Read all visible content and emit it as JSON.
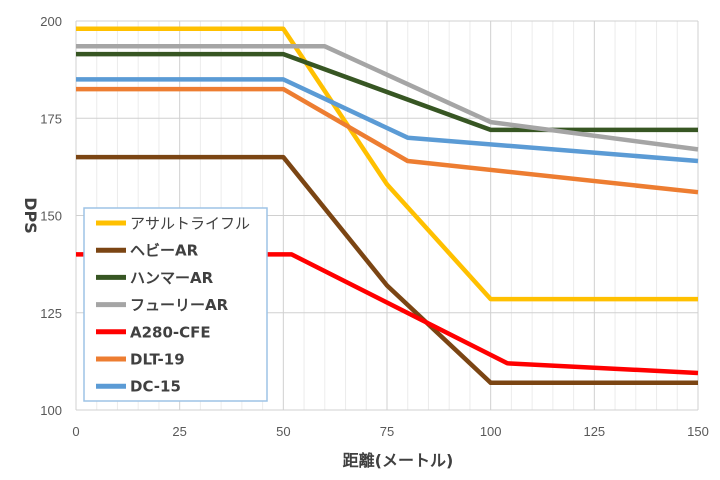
{
  "chart_data": {
    "type": "line",
    "title": "",
    "xlabel": "距離(メートル)",
    "ylabel": "DPS",
    "xlim": [
      0,
      150
    ],
    "ylim": [
      100,
      200
    ],
    "xticks": [
      0,
      25,
      50,
      75,
      100,
      125,
      150
    ],
    "yticks": [
      100,
      125,
      150,
      175,
      200
    ],
    "grid": true,
    "minor_x_grid_step": 5,
    "legend_position": "bottom-left",
    "series": [
      {
        "name": "アサルトライフル",
        "color": "#FFC000",
        "bold": false,
        "points": [
          [
            0,
            198
          ],
          [
            50,
            198
          ],
          [
            75,
            158
          ],
          [
            100,
            128.5
          ],
          [
            150,
            128.5
          ]
        ]
      },
      {
        "name": "ヘビーAR",
        "color": "#7B4513",
        "bold": true,
        "points": [
          [
            0,
            165
          ],
          [
            50,
            165
          ],
          [
            75,
            132
          ],
          [
            100,
            107
          ],
          [
            150,
            107
          ]
        ]
      },
      {
        "name": "ハンマーAR",
        "color": "#375623",
        "bold": true,
        "points": [
          [
            0,
            191.5
          ],
          [
            50,
            191.5
          ],
          [
            100,
            172
          ],
          [
            150,
            172
          ]
        ]
      },
      {
        "name": "フューリーAR",
        "color": "#A5A5A5",
        "bold": true,
        "points": [
          [
            0,
            193.5
          ],
          [
            60,
            193.5
          ],
          [
            100,
            174
          ],
          [
            150,
            167
          ]
        ]
      },
      {
        "name": "A280-CFE",
        "color": "#FF0000",
        "bold": true,
        "points": [
          [
            0,
            140
          ],
          [
            52,
            140
          ],
          [
            104,
            112
          ],
          [
            150,
            109.5
          ]
        ]
      },
      {
        "name": "DLT-19",
        "color": "#ED7D31",
        "bold": true,
        "points": [
          [
            0,
            182.5
          ],
          [
            50,
            182.5
          ],
          [
            80,
            164
          ],
          [
            150,
            156
          ]
        ]
      },
      {
        "name": "DC-15",
        "color": "#5B9BD5",
        "bold": true,
        "points": [
          [
            0,
            185
          ],
          [
            50,
            185
          ],
          [
            80,
            170
          ],
          [
            150,
            164
          ]
        ]
      }
    ]
  }
}
